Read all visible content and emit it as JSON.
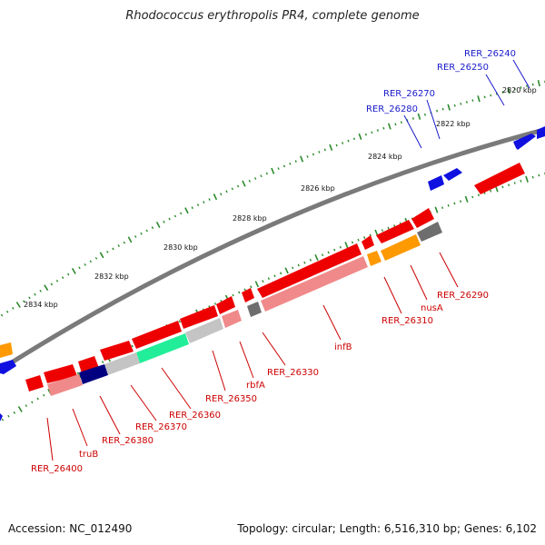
{
  "title": "Rhodococcus erythropolis PR4, complete genome",
  "footer": {
    "accession": "Accession: NC_012490",
    "topology": "Topology: circular; Length: 6,516,310 bp; Genes: 6,102"
  },
  "ruler_labels": [
    "2820 kbp",
    "2822 kbp",
    "2824 kbp",
    "2826 kbp",
    "2828 kbp",
    "2830 kbp",
    "2832 kbp",
    "2834 kbp"
  ],
  "colors": {
    "backbone": "#7a7a7a",
    "ticks": "#2a8a2a",
    "forward_gene": "#1010e0",
    "reverse_gene": "#ee0000",
    "reverse_light": "#f08a8a",
    "orange": "#ff9900",
    "dark_gray": "#6e6e6e",
    "light_gray": "#c4c4c4",
    "navy": "#000080",
    "green": "#22ee99",
    "label_blue": "#1a1acc",
    "label_red": "#cc0000"
  },
  "gene_labels": {
    "forward": [
      "RER_26240",
      "RER_26250",
      "RER_26270",
      "RER_26280"
    ],
    "reverse": [
      "RER_26290",
      "nusA",
      "RER_26310",
      "infB",
      "RER_26330",
      "rbfA",
      "RER_26350",
      "RER_26360",
      "RER_26370",
      "RER_26380",
      "truB",
      "RER_26400"
    ]
  }
}
